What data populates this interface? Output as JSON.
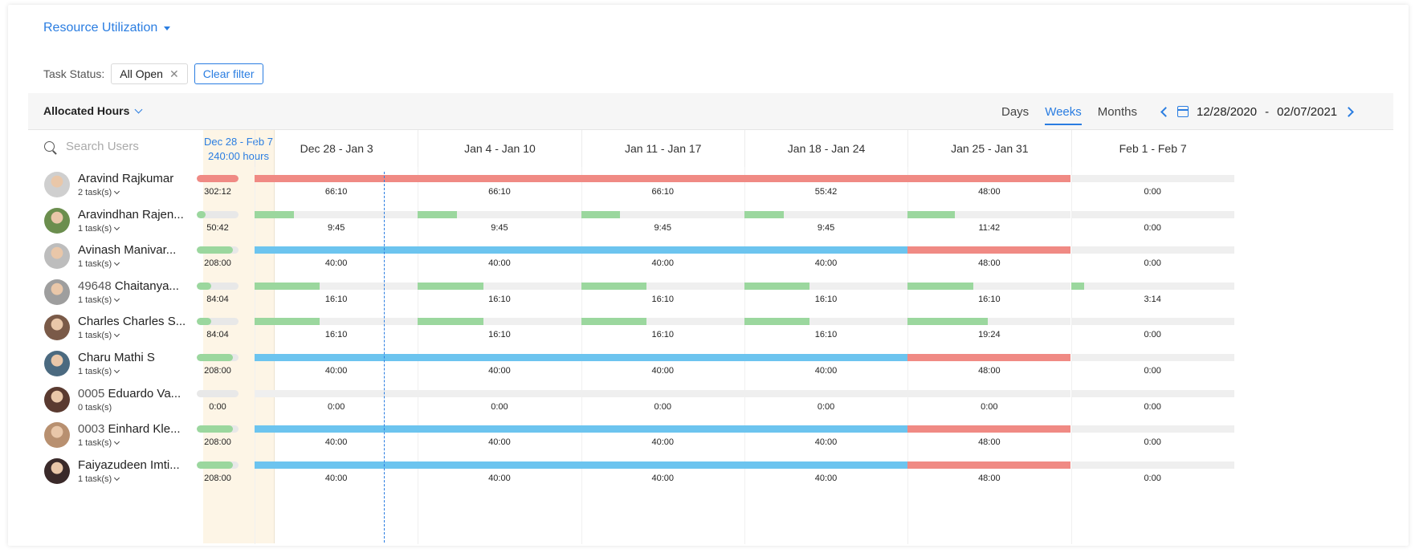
{
  "header": {
    "title": "Resource Utilization"
  },
  "filters": {
    "label": "Task Status:",
    "chip": "All Open",
    "chip_remove": "✕",
    "clear": "Clear filter"
  },
  "toolbar": {
    "allocated": "Allocated Hours",
    "views": [
      "Days",
      "Weeks",
      "Months"
    ],
    "active_view": "Weeks",
    "range_start": "12/28/2020",
    "range_sep": "-",
    "range_end": "02/07/2021"
  },
  "search": {
    "placeholder": "Search Users"
  },
  "total_column": {
    "range": "Dec 28 - Feb 7",
    "hours": "240:00 hours"
  },
  "weeks": [
    "Dec 28 - Jan 3",
    "Jan 4 - Jan 10",
    "Jan 11 - Jan 17",
    "Jan 18 - Jan 24",
    "Jan 25 - Jan 31",
    "Feb 1 - Feb 7"
  ],
  "colors": {
    "over": "#f08a84",
    "under": "#9bd79e",
    "full": "#6cc4ef",
    "empty": "#efefef",
    "accent": "#2a7de1"
  },
  "users": [
    {
      "name": "Aravind Rajkumar",
      "code": "",
      "tasks": "2 task(s)",
      "has_chevron": true,
      "total": "302:12",
      "total_fill": 1.0,
      "total_status": "over",
      "weeks": [
        {
          "v": "66:10",
          "f": 1.0,
          "s": "over"
        },
        {
          "v": "66:10",
          "f": 1.0,
          "s": "over"
        },
        {
          "v": "66:10",
          "f": 1.0,
          "s": "over"
        },
        {
          "v": "55:42",
          "f": 1.0,
          "s": "over"
        },
        {
          "v": "48:00",
          "f": 1.0,
          "s": "over"
        },
        {
          "v": "0:00",
          "f": 0,
          "s": "empty"
        }
      ]
    },
    {
      "name": "Aravindhan Rajen...",
      "code": "",
      "tasks": "1 task(s)",
      "has_chevron": true,
      "total": "50:42",
      "total_fill": 0.21,
      "total_status": "under",
      "weeks": [
        {
          "v": "9:45",
          "f": 0.24,
          "s": "under"
        },
        {
          "v": "9:45",
          "f": 0.24,
          "s": "under"
        },
        {
          "v": "9:45",
          "f": 0.24,
          "s": "under"
        },
        {
          "v": "9:45",
          "f": 0.24,
          "s": "under"
        },
        {
          "v": "11:42",
          "f": 0.29,
          "s": "under"
        },
        {
          "v": "0:00",
          "f": 0,
          "s": "empty"
        }
      ]
    },
    {
      "name": "Avinash Manivar...",
      "code": "",
      "tasks": "1 task(s)",
      "has_chevron": true,
      "total": "208:00",
      "total_fill": 0.87,
      "total_status": "under",
      "weeks": [
        {
          "v": "40:00",
          "f": 1.0,
          "s": "full"
        },
        {
          "v": "40:00",
          "f": 1.0,
          "s": "full"
        },
        {
          "v": "40:00",
          "f": 1.0,
          "s": "full"
        },
        {
          "v": "40:00",
          "f": 1.0,
          "s": "full"
        },
        {
          "v": "48:00",
          "f": 1.0,
          "s": "over"
        },
        {
          "v": "0:00",
          "f": 0,
          "s": "empty"
        }
      ]
    },
    {
      "name": "Chaitanya...",
      "code": "49648",
      "tasks": "1 task(s)",
      "has_chevron": true,
      "total": "84:04",
      "total_fill": 0.35,
      "total_status": "under",
      "weeks": [
        {
          "v": "16:10",
          "f": 0.4,
          "s": "under"
        },
        {
          "v": "16:10",
          "f": 0.4,
          "s": "under"
        },
        {
          "v": "16:10",
          "f": 0.4,
          "s": "under"
        },
        {
          "v": "16:10",
          "f": 0.4,
          "s": "under"
        },
        {
          "v": "16:10",
          "f": 0.4,
          "s": "under"
        },
        {
          "v": "3:14",
          "f": 0.08,
          "s": "under"
        }
      ]
    },
    {
      "name": "Charles Charles S...",
      "code": "",
      "tasks": "1 task(s)",
      "has_chevron": true,
      "total": "84:04",
      "total_fill": 0.35,
      "total_status": "under",
      "weeks": [
        {
          "v": "16:10",
          "f": 0.4,
          "s": "under"
        },
        {
          "v": "16:10",
          "f": 0.4,
          "s": "under"
        },
        {
          "v": "16:10",
          "f": 0.4,
          "s": "under"
        },
        {
          "v": "16:10",
          "f": 0.4,
          "s": "under"
        },
        {
          "v": "19:24",
          "f": 0.49,
          "s": "under"
        },
        {
          "v": "0:00",
          "f": 0,
          "s": "empty"
        }
      ]
    },
    {
      "name": "Charu Mathi S",
      "code": "",
      "tasks": "1 task(s)",
      "has_chevron": true,
      "total": "208:00",
      "total_fill": 0.87,
      "total_status": "under",
      "weeks": [
        {
          "v": "40:00",
          "f": 1.0,
          "s": "full"
        },
        {
          "v": "40:00",
          "f": 1.0,
          "s": "full"
        },
        {
          "v": "40:00",
          "f": 1.0,
          "s": "full"
        },
        {
          "v": "40:00",
          "f": 1.0,
          "s": "full"
        },
        {
          "v": "48:00",
          "f": 1.0,
          "s": "over"
        },
        {
          "v": "0:00",
          "f": 0,
          "s": "empty"
        }
      ]
    },
    {
      "name": "Eduardo Va...",
      "code": "0005",
      "tasks": "0 task(s)",
      "has_chevron": false,
      "total": "0:00",
      "total_fill": 0,
      "total_status": "empty",
      "weeks": [
        {
          "v": "0:00",
          "f": 0,
          "s": "empty"
        },
        {
          "v": "0:00",
          "f": 0,
          "s": "empty"
        },
        {
          "v": "0:00",
          "f": 0,
          "s": "empty"
        },
        {
          "v": "0:00",
          "f": 0,
          "s": "empty"
        },
        {
          "v": "0:00",
          "f": 0,
          "s": "empty"
        },
        {
          "v": "0:00",
          "f": 0,
          "s": "empty"
        }
      ]
    },
    {
      "name": "Einhard Kle...",
      "code": "0003",
      "tasks": "1 task(s)",
      "has_chevron": true,
      "total": "208:00",
      "total_fill": 0.87,
      "total_status": "under",
      "weeks": [
        {
          "v": "40:00",
          "f": 1.0,
          "s": "full"
        },
        {
          "v": "40:00",
          "f": 1.0,
          "s": "full"
        },
        {
          "v": "40:00",
          "f": 1.0,
          "s": "full"
        },
        {
          "v": "40:00",
          "f": 1.0,
          "s": "full"
        },
        {
          "v": "48:00",
          "f": 1.0,
          "s": "over"
        },
        {
          "v": "0:00",
          "f": 0,
          "s": "empty"
        }
      ]
    },
    {
      "name": "Faiyazudeen Imti...",
      "code": "",
      "tasks": "1 task(s)",
      "has_chevron": true,
      "total": "208:00",
      "total_fill": 0.87,
      "total_status": "under",
      "weeks": [
        {
          "v": "40:00",
          "f": 1.0,
          "s": "full"
        },
        {
          "v": "40:00",
          "f": 1.0,
          "s": "full"
        },
        {
          "v": "40:00",
          "f": 1.0,
          "s": "full"
        },
        {
          "v": "40:00",
          "f": 1.0,
          "s": "full"
        },
        {
          "v": "48:00",
          "f": 1.0,
          "s": "over"
        },
        {
          "v": "0:00",
          "f": 0,
          "s": "empty"
        }
      ]
    }
  ]
}
